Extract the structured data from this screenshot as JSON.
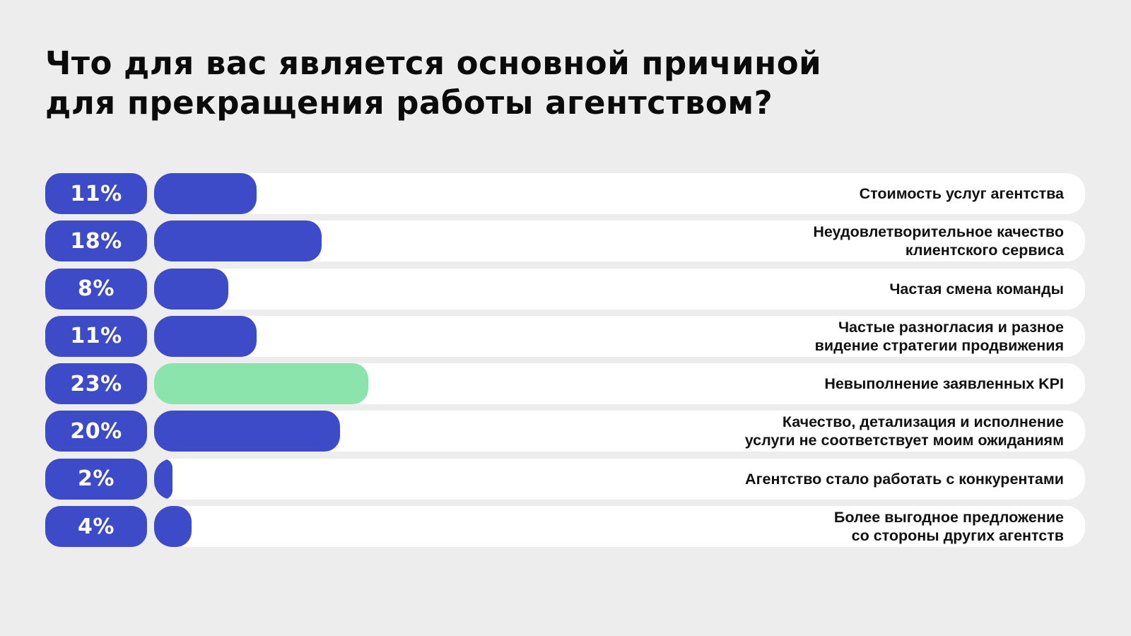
{
  "title": {
    "line1": "Что для вас является основной причиной",
    "line2": "для прекращения работы агентством?"
  },
  "colors": {
    "background": "#EDEDED",
    "bar_blue": "#3E4BC8",
    "bar_green": "#8CE4AD",
    "track": "#FFFFFF",
    "badge_background": "#3E4BC8",
    "badge_text": "#FFFFFF",
    "label_text": "#111111",
    "title_text": "#0B0B0B"
  },
  "chart_data": {
    "type": "bar",
    "orientation": "horizontal",
    "title": "Что для вас является основной причиной для прекращения работы агентством?",
    "unit": "percent",
    "xlim": [
      0,
      100
    ],
    "grid": false,
    "legend": false,
    "categories": [
      "Стоимость услуг агентства",
      "Неудовлетворительное качество клиентского сервиса",
      "Частая смена команды",
      "Частые разногласия и разное видение стратегии продвижения",
      "Невыполнение заявленных KPI",
      "Качество, детализация и исполнение услуги не соответствует моим ожиданиям",
      "Агентство стало работать с конкурентами",
      "Более выгодное предложение со стороны других агентств"
    ],
    "values": [
      11,
      18,
      8,
      11,
      23,
      20,
      2,
      4
    ],
    "value_labels": [
      "11%",
      "18%",
      "8%",
      "11%",
      "23%",
      "20%",
      "2%",
      "4%"
    ],
    "highlight_index": 4,
    "highlight_color": "#8CE4AD",
    "default_color": "#3E4BC8"
  },
  "rows": [
    {
      "value_label": "11%",
      "pct": 11,
      "color": "blue",
      "label_lines": [
        "Стоимость услуг агентства"
      ]
    },
    {
      "value_label": "18%",
      "pct": 18,
      "color": "blue",
      "label_lines": [
        "Неудовлетворительное качество",
        "клиентского сервиса"
      ]
    },
    {
      "value_label": "8%",
      "pct": 8,
      "color": "blue",
      "label_lines": [
        "Частая смена команды"
      ]
    },
    {
      "value_label": "11%",
      "pct": 11,
      "color": "blue",
      "label_lines": [
        "Частые разногласия и разное",
        "видение стратегии продвижения"
      ]
    },
    {
      "value_label": "23%",
      "pct": 23,
      "color": "green",
      "label_lines": [
        "Невыполнение заявленных KPI"
      ]
    },
    {
      "value_label": "20%",
      "pct": 20,
      "color": "blue",
      "label_lines": [
        "Качество, детализация и исполнение",
        "услуги не соответствует моим ожиданиям"
      ]
    },
    {
      "value_label": "2%",
      "pct": 2,
      "color": "blue",
      "label_lines": [
        "Агентство стало работать с конкурентами"
      ]
    },
    {
      "value_label": "4%",
      "pct": 4,
      "color": "blue",
      "label_lines": [
        "Более выгодное предложение",
        "со стороны других агентств"
      ]
    }
  ]
}
